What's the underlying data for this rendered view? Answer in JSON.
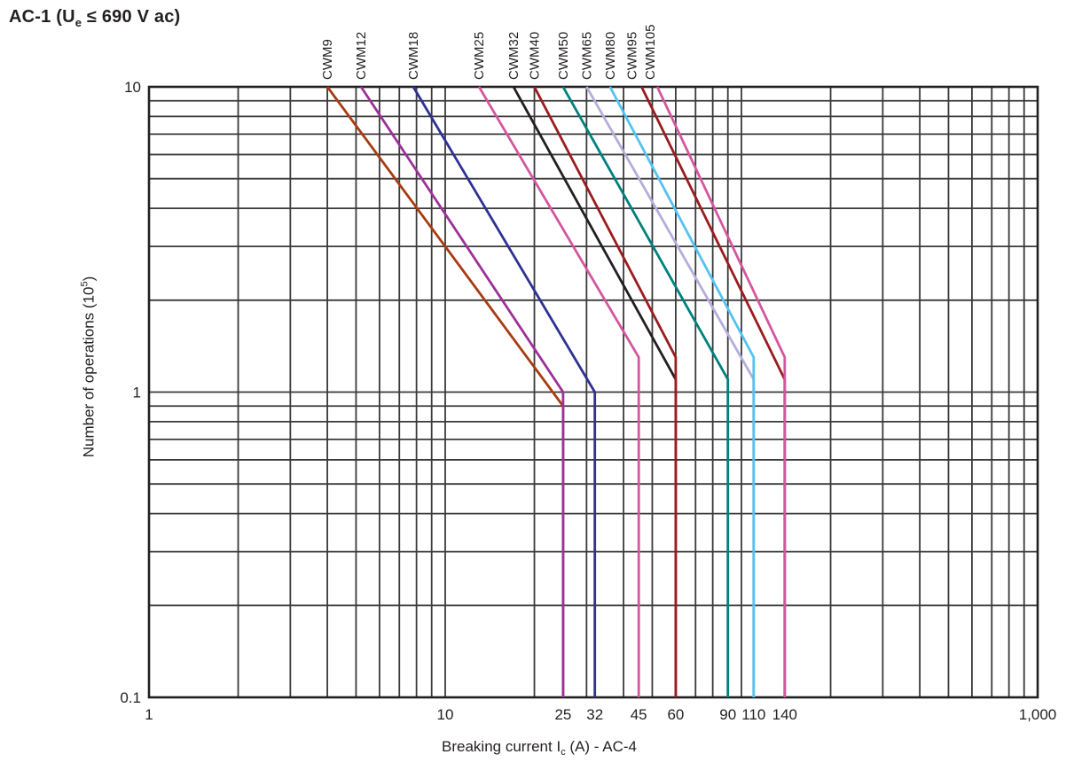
{
  "title": {
    "pre": "AC-1 (U",
    "sub": "e",
    "post": " ≤ 690 V ac)"
  },
  "chart_data": {
    "type": "line",
    "title": "AC-1 (Ue ≤ 690 V ac)",
    "x_axis": {
      "label_pre": "Breaking current I",
      "label_sub": "c",
      "label_post": " (A) - AC-4",
      "scale": "log",
      "xlim": [
        1,
        1000
      ],
      "ticks": [
        {
          "v": 1,
          "t": "1"
        },
        {
          "v": 10,
          "t": "10"
        },
        {
          "v": 25,
          "t": "25"
        },
        {
          "v": 32,
          "t": "32"
        },
        {
          "v": 45,
          "t": "45"
        },
        {
          "v": 60,
          "t": "60"
        },
        {
          "v": 90,
          "t": "90"
        },
        {
          "v": 110,
          "t": "110"
        },
        {
          "v": 140,
          "t": "140"
        },
        {
          "v": 1000,
          "t": "1,000"
        }
      ]
    },
    "y_axis": {
      "label_pre": "Number of operations (10",
      "label_sup": "5",
      "label_post": ")",
      "scale": "log",
      "ylim": [
        0.1,
        10
      ],
      "ticks": [
        {
          "v": 10,
          "t": "10"
        },
        {
          "v": 1,
          "t": "1"
        },
        {
          "v": 0.1,
          "t": "0.1"
        }
      ]
    },
    "grid": "full minor log grid, dark gray",
    "legend_position": "labels rotated 90deg above each curve",
    "series": [
      {
        "name": "CWM9",
        "color": "#a83c11",
        "label_dx": 0,
        "points": [
          [
            4.0,
            10
          ],
          [
            25,
            0.9
          ],
          [
            25,
            0.1
          ]
        ]
      },
      {
        "name": "CWM12",
        "color": "#9c3197",
        "label_dx": 0,
        "points": [
          [
            5.2,
            10
          ],
          [
            25,
            1.0
          ],
          [
            25,
            0.1
          ]
        ]
      },
      {
        "name": "CWM18",
        "color": "#2e3192",
        "label_dx": 0,
        "points": [
          [
            7.8,
            10
          ],
          [
            32,
            1.0
          ],
          [
            32,
            0.1
          ]
        ]
      },
      {
        "name": "CWM25",
        "color": "#d4569f",
        "label_dx": 0,
        "points": [
          [
            13,
            10
          ],
          [
            45,
            1.3
          ],
          [
            45,
            0.1
          ]
        ]
      },
      {
        "name": "CWM32",
        "color": "#231f20",
        "label_dx": 0,
        "points": [
          [
            17,
            10
          ],
          [
            60,
            1.1
          ],
          [
            60,
            0.1
          ]
        ]
      },
      {
        "name": "CWM40",
        "color": "#9b1b1f",
        "label_dx": 0,
        "points": [
          [
            20,
            10
          ],
          [
            60,
            1.3
          ],
          [
            60,
            0.1
          ]
        ]
      },
      {
        "name": "CWM50",
        "color": "#00807e",
        "label_dx": 0,
        "points": [
          [
            25,
            10
          ],
          [
            90,
            1.1
          ],
          [
            90,
            0.1
          ]
        ]
      },
      {
        "name": "CWM65",
        "color": "#b3aedb",
        "label_dx": 0,
        "points": [
          [
            30,
            10
          ],
          [
            110,
            1.1
          ],
          [
            110,
            0.1
          ]
        ]
      },
      {
        "name": "CWM80",
        "color": "#53c3f1",
        "label_dx": 0,
        "points": [
          [
            36,
            10
          ],
          [
            110,
            1.3
          ],
          [
            110,
            0.1
          ]
        ]
      },
      {
        "name": "CWM95",
        "color": "#9b1b1f",
        "label_dx": -11,
        "points": [
          [
            46,
            10
          ],
          [
            140,
            1.1
          ],
          [
            140,
            0.1
          ]
        ]
      },
      {
        "name": "CWM105",
        "color": "#d4569f",
        "label_dx": -8,
        "points": [
          [
            52,
            10
          ],
          [
            140,
            1.3
          ],
          [
            140,
            0.1
          ]
        ]
      }
    ],
    "colors": {
      "grid": "#3a3a3a",
      "border": "#231f20",
      "text": "#231f20"
    }
  }
}
